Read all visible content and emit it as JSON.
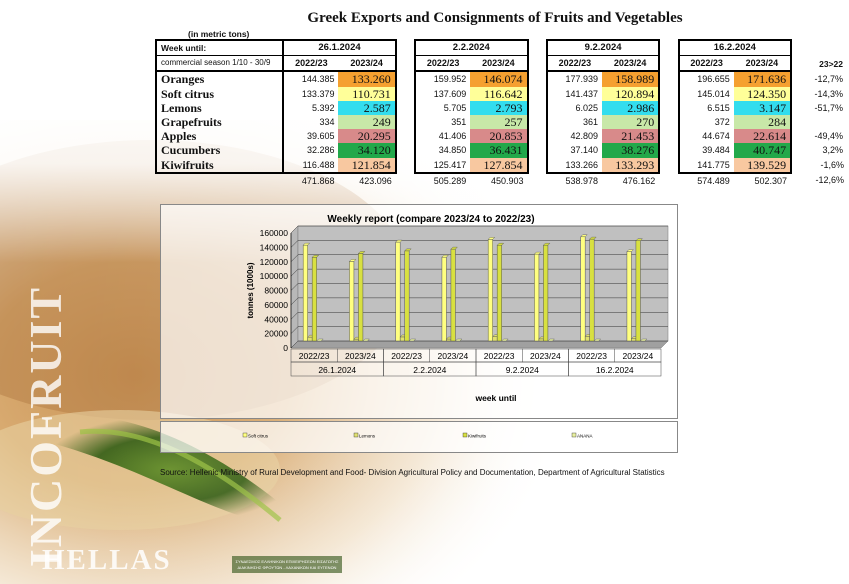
{
  "page": {
    "title": "Greek Exports and Consignments of Fruits and Vegetables",
    "unit_note": "(in metric tons)",
    "source": "Source: Hellenic Ministry of Rural Development and Food- Division Agricultural Policy and Documentation, Department of Agricultural Statistics",
    "watermark": "INCOFRUIT",
    "brand": "HELLAS"
  },
  "table": {
    "week_label": "Week until:",
    "season_label": "commercial season 1/10 - 30/9",
    "weeks": [
      "26.1.2024",
      "2.2.2024",
      "9.2.2024",
      "16.2.2024"
    ],
    "season_a": "2022/23",
    "season_b": "2023/24",
    "change_header": "23>22",
    "rows": [
      {
        "name": "Oranges",
        "a": [
          "144.385",
          "159.952",
          "177.939",
          "196.655"
        ],
        "b": [
          "133.260",
          "146.074",
          "158.989",
          "171.636"
        ],
        "change": "-12,7%",
        "color": "#f5a030"
      },
      {
        "name": "Soft citrus",
        "a": [
          "133.379",
          "137.609",
          "141.437",
          "145.014"
        ],
        "b": [
          "110.731",
          "116.642",
          "120.894",
          "124.350"
        ],
        "change": "-14,3%",
        "color": "#ffff99"
      },
      {
        "name": "Lemons",
        "a": [
          "5.392",
          "5.705",
          "6.025",
          "6.515"
        ],
        "b": [
          "2.587",
          "2.793",
          "2.986",
          "3.147"
        ],
        "change": "-51,7%",
        "color": "#33ddee"
      },
      {
        "name": "Grapefruits",
        "a": [
          "334",
          "351",
          "361",
          "372"
        ],
        "b": [
          "249",
          "257",
          "270",
          "284"
        ],
        "change": "",
        "color": "#c8e8a8"
      },
      {
        "name": "Apples",
        "a": [
          "39.605",
          "41.406",
          "42.809",
          "44.674"
        ],
        "b": [
          "20.295",
          "20.853",
          "21.453",
          "22.614"
        ],
        "change": "-49,4%",
        "color": "#d88a8a"
      },
      {
        "name": "Cucumbers",
        "a": [
          "32.286",
          "34.850",
          "37.140",
          "39.484"
        ],
        "b": [
          "34.120",
          "36.431",
          "38.276",
          "40.747"
        ],
        "change": "3,2%",
        "color": "#22a84a"
      },
      {
        "name": "Kiwifruits",
        "a": [
          "116.488",
          "125.417",
          "133.266",
          "141.775"
        ],
        "b": [
          "121.854",
          "127.854",
          "133.293",
          "139.529"
        ],
        "change": "-1,6%",
        "color": "#f8c8a0"
      }
    ],
    "totals": {
      "a": [
        "471.868",
        "505.289",
        "538.978",
        "574.489"
      ],
      "b": [
        "423.096",
        "450.903",
        "476.162",
        "502.307"
      ],
      "change": "-12,6%"
    }
  },
  "chart_data": {
    "type": "bar",
    "title": "Weekly report (compare 2023/24 to 2022/23)",
    "xlabel": "week until",
    "ylabel": "tonnes (1000s)",
    "ylim": [
      0,
      160000
    ],
    "yticks": [
      0,
      20000,
      40000,
      60000,
      80000,
      100000,
      120000,
      140000,
      160000
    ],
    "groups": [
      "26.1.2024",
      "2.2.2024",
      "9.2.2024",
      "16.2.2024"
    ],
    "categories": [
      "2022/23",
      "2023/24",
      "2022/23",
      "2023/24",
      "2022/23",
      "2023/24",
      "2022/23",
      "2023/24"
    ],
    "grid": true,
    "legend_position": "bottom",
    "series": [
      {
        "name": "Soft citrus",
        "color": "#ffff80",
        "values": [
          133379,
          110731,
          137609,
          116642,
          141437,
          120894,
          145014,
          124350
        ]
      },
      {
        "name": "Lemons",
        "color": "#e0e070",
        "values": [
          5392,
          2587,
          5705,
          2793,
          6025,
          2986,
          6515,
          3147
        ]
      },
      {
        "name": "Kiwifruits",
        "color": "#d8e040",
        "values": [
          116488,
          121854,
          125417,
          127854,
          133266,
          133293,
          141775,
          139529
        ]
      },
      {
        "name": "ΑΝΑΝΑ",
        "color": "#e8f0a0",
        "values": [
          0,
          0,
          0,
          0,
          0,
          0,
          0,
          0
        ]
      }
    ]
  },
  "logo_text": [
    "ΣΥΝΔΕΣΜΟΣ ΕΛΛΗΝΙΚΩΝ ΕΠΙΧΕΙΡΗΣΕΩΝ ΕΙΣΑΓΩΓΗΣ",
    "ΔΙΑΚΙΝΗΣΗΣ ΦΡΟΥΤΩΝ - ΛΑΧΑΝΙΚΩΝ ΚΑΙ ΕΥΓΕΝΩΝ"
  ]
}
